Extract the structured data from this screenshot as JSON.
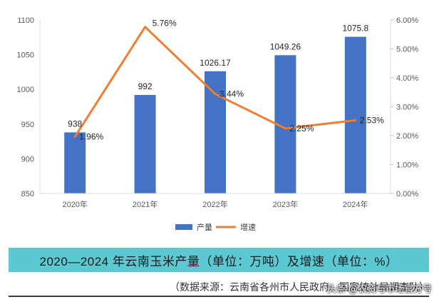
{
  "chart_data": {
    "type": "bar",
    "categories": [
      "2020年",
      "2021年",
      "2022年",
      "2023年",
      "2024年"
    ],
    "series": [
      {
        "name": "产量",
        "type": "bar",
        "axis": "left",
        "values": [
          938,
          992,
          1026.17,
          1049.26,
          1075.8
        ],
        "labels": [
          "938",
          "992",
          "1026.17",
          "1049.26",
          "1075.8"
        ],
        "color": "#4472c4"
      },
      {
        "name": "增速",
        "type": "line",
        "axis": "right",
        "values": [
          1.96,
          5.76,
          3.44,
          2.25,
          2.53
        ],
        "labels": [
          "1.96%",
          "5.76%",
          "3.44%",
          "2.25%",
          "2.53%"
        ],
        "color": "#ed7d31"
      }
    ],
    "y_left": {
      "min": 850,
      "max": 1100,
      "ticks": [
        "850",
        "900",
        "950",
        "1000",
        "1050",
        "1100"
      ]
    },
    "y_right": {
      "min": 0,
      "max": 6,
      "ticks": [
        "0.00%",
        "1.00%",
        "2.00%",
        "3.00%",
        "4.00%",
        "5.00%",
        "6.00%"
      ]
    },
    "legend_position": "bottom",
    "grid": false
  },
  "title": "2020—2024 年云南玉米产量（单位：万吨）及增速（单位：%）",
  "source": "（数据来源：云南省各州市人民政府、国家统计局调查队）",
  "watermark": "头条 @农资与市场官方号"
}
